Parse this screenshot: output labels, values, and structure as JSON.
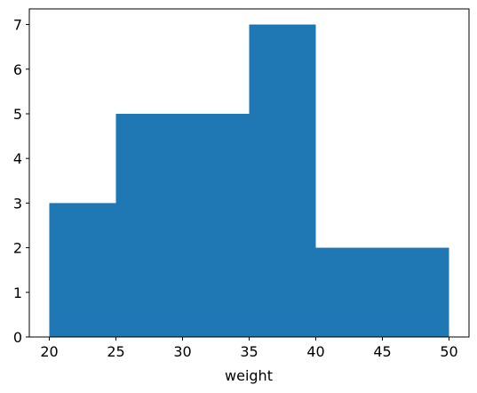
{
  "chart_data": {
    "type": "histogram",
    "xlabel": "weight",
    "bins": [
      20,
      25,
      30,
      35,
      40,
      45,
      50
    ],
    "values": [
      3,
      5,
      5,
      7,
      2,
      2
    ],
    "color": "#1f77b4",
    "xlim": [
      18.5,
      51.5
    ],
    "xticks": [
      20,
      25,
      30,
      35,
      40,
      45,
      50
    ],
    "ylim": [
      0,
      7.35
    ],
    "yticks": [
      0,
      1,
      2,
      3,
      4,
      5,
      6,
      7
    ]
  }
}
